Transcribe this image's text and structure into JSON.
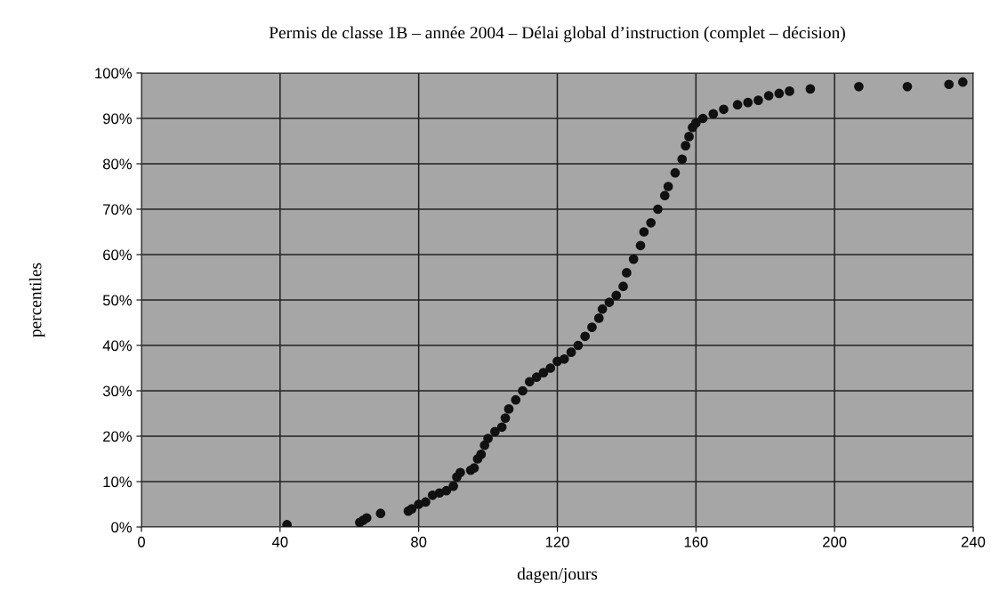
{
  "chart_data": {
    "type": "scatter",
    "title": "Permis de classe 1B – année 2004 – Délai global d’instruction (complet – décision)",
    "xlabel": "dagen/jours",
    "ylabel": "percentiles",
    "x": [
      42,
      63,
      64,
      65,
      69,
      77,
      78,
      80,
      82,
      84,
      86,
      88,
      90,
      91,
      92,
      95,
      96,
      97,
      98,
      99,
      100,
      102,
      104,
      105,
      106,
      108,
      110,
      112,
      114,
      116,
      118,
      120,
      122,
      124,
      126,
      128,
      130,
      132,
      133,
      135,
      137,
      139,
      140,
      142,
      144,
      145,
      147,
      149,
      151,
      152,
      154,
      156,
      157,
      158,
      159,
      160,
      162,
      165,
      168,
      172,
      175,
      178,
      181,
      184,
      187,
      193,
      207,
      221,
      233,
      237
    ],
    "series": [
      {
        "color": "#111111",
        "values": [
          0.5,
          1,
          1.5,
          2,
          3,
          3.5,
          4,
          5,
          5.5,
          7,
          7.5,
          8,
          9,
          11,
          12,
          12.5,
          13,
          15,
          16,
          18,
          19.5,
          21,
          22,
          24,
          26,
          28,
          30,
          32,
          33,
          34,
          35,
          36.5,
          37,
          38.5,
          40,
          42,
          44,
          46,
          48,
          49.5,
          51,
          53,
          56,
          59,
          62,
          65,
          67,
          70,
          73,
          75,
          78,
          81,
          84,
          86,
          88,
          89,
          90,
          91,
          92,
          93,
          93.5,
          94,
          95,
          95.5,
          96,
          96.5,
          97,
          97,
          97.5,
          98
        ]
      }
    ],
    "xlim": [
      0,
      240
    ],
    "xticks": [
      0,
      40,
      80,
      120,
      160,
      200,
      240
    ],
    "ylim": [
      0,
      100
    ],
    "yticks": [
      {
        "value": 0,
        "label": "0%"
      },
      {
        "value": 10,
        "label": "10%"
      },
      {
        "value": 20,
        "label": "20%"
      },
      {
        "value": 30,
        "label": "30%"
      },
      {
        "value": 40,
        "label": "40%"
      },
      {
        "value": 50,
        "label": "50%"
      },
      {
        "value": 60,
        "label": "60%"
      },
      {
        "value": 70,
        "label": "70%"
      },
      {
        "value": 80,
        "label": "80%"
      },
      {
        "value": 90,
        "label": "90%"
      },
      {
        "value": 100,
        "label": "100%"
      }
    ],
    "grid": true,
    "marker": "circle",
    "legend": false
  }
}
